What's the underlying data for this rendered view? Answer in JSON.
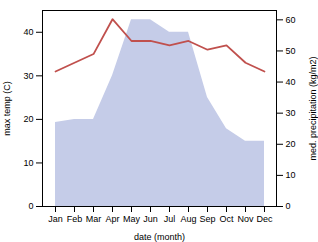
{
  "chart_data": {
    "type": "line",
    "categories": [
      "Jan",
      "Feb",
      "Mar",
      "Apr",
      "May",
      "Jun",
      "Jul",
      "Aug",
      "Sep",
      "Oct",
      "Nov",
      "Dec"
    ],
    "xlabel": "date (month)",
    "ylabel": "max temp (C)",
    "y2label": "med. precipitation (kg/m2)",
    "ylim": [
      0,
      45
    ],
    "yticks": [
      0,
      10,
      20,
      30,
      40
    ],
    "y2lim": [
      0,
      63
    ],
    "y2ticks": [
      0,
      10,
      20,
      30,
      40,
      50,
      60
    ],
    "series": [
      {
        "type": "area",
        "axis": "y2",
        "color": "#c5cce8",
        "values": [
          27,
          28,
          28,
          42,
          60,
          60,
          56,
          56,
          35,
          25,
          21,
          21
        ]
      },
      {
        "type": "line",
        "color": "#c0504d",
        "values": [
          31,
          33,
          35,
          43,
          38,
          38,
          37,
          38,
          36,
          37,
          33,
          31
        ]
      }
    ]
  }
}
